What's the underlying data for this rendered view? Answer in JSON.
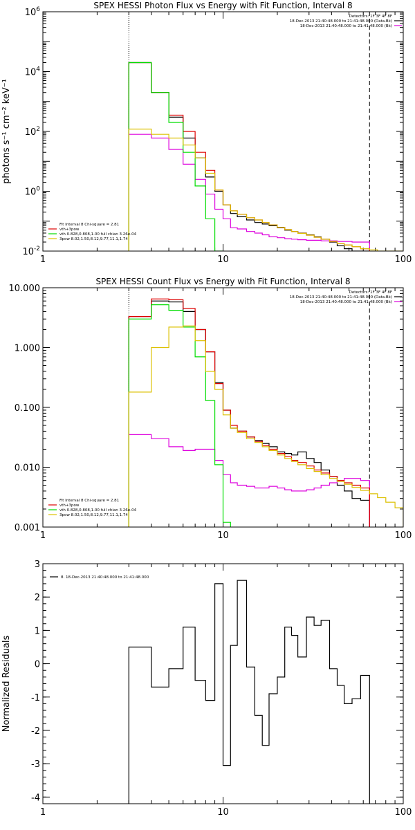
{
  "colors": {
    "black": "#000000",
    "red": "#dd0000",
    "green": "#00dd00",
    "yellow": "#dcc000",
    "magenta": "#dd00dd"
  },
  "chart_data": [
    {
      "type": "line",
      "title": "SPEX HESSI Photon Flux vs Energy with Fit Function, Interval 8",
      "ylabel": "photons s⁻¹ cm⁻² keV⁻¹",
      "xlabel": "",
      "xscale": "log",
      "yscale": "log",
      "xlim": [
        1,
        100
      ],
      "ylim": [
        0.01,
        1000000
      ],
      "x_ticks": [
        "1",
        "10",
        "100"
      ],
      "y_ticks": [
        {
          "value": 0.01,
          "base": "10",
          "exp": "-2"
        },
        {
          "value": 1,
          "base": "10",
          "exp": "0"
        },
        {
          "value": 100,
          "base": "10",
          "exp": "2"
        },
        {
          "value": 10000,
          "base": "10",
          "exp": "4"
        },
        {
          "value": 1000000,
          "base": "10",
          "exp": "6"
        }
      ],
      "vlines": [
        {
          "x": 3.0,
          "style": "dotted"
        },
        {
          "x": 65,
          "style": "dashed"
        }
      ],
      "legend_upper": [
        {
          "text": "Detectors: 1F 3F 4F 8F",
          "color": "",
          "marker": false
        },
        {
          "text": "18-Dec-2013 21:40:48.000 to 21:41:48.000 (Data-Bk)",
          "color": "black",
          "marker": true
        },
        {
          "text": "18-Dec-2013 21:40:48.000 to 21:41:48.000 (Bk)",
          "color": "magenta",
          "marker": true
        }
      ],
      "legend_lower": [
        {
          "text": "Fit Interval 8   Chi-square = 2.81",
          "color": "",
          "marker": false
        },
        {
          "text": "vth+3pow",
          "color": "red",
          "marker": true
        },
        {
          "text": "vth 0.828,0.808,1.00  full chian 3.26e-04",
          "color": "green",
          "marker": true
        },
        {
          "text": "3pow 8.02,1.50,8.12,9.77,11.1,1.74",
          "color": "yellow",
          "marker": true
        }
      ],
      "edges": [
        3.0,
        4.0,
        5.0,
        6.0,
        7.0,
        8.0,
        9.0,
        10.0,
        11.0,
        12.0,
        13.5,
        15.0,
        16.5,
        18.0,
        20.0,
        22.0,
        24.0,
        26.0,
        29.0,
        32.0,
        35.0,
        39.0,
        43.0,
        47.0,
        52.0,
        58.0,
        65.0,
        72.0,
        80.0,
        90.0,
        100.0
      ],
      "series": [
        {
          "name": "Data-Bk",
          "color": "black",
          "values": [
            20000,
            2000,
            300,
            60,
            13,
            3.0,
            1.0,
            0.35,
            0.18,
            0.14,
            0.11,
            0.09,
            0.08,
            0.07,
            0.06,
            0.05,
            0.045,
            0.04,
            0.035,
            0.03,
            0.025,
            0.02,
            0.015,
            0.012,
            0.01,
            0.009,
            null,
            null,
            null,
            null
          ]
        },
        {
          "name": "Bk",
          "color": "magenta",
          "values": [
            80,
            60,
            25,
            8,
            2.5,
            0.8,
            0.25,
            0.12,
            0.06,
            0.055,
            0.045,
            0.04,
            0.035,
            0.03,
            0.028,
            0.026,
            0.025,
            0.024,
            0.023,
            0.023,
            0.022,
            0.022,
            0.021,
            0.021,
            0.02,
            0.02,
            null,
            null,
            null,
            null
          ]
        },
        {
          "name": "vth+3pow",
          "color": "red",
          "values": [
            20000,
            2000,
            350,
            100,
            20,
            5.0,
            1.1,
            0.35,
            0.22,
            0.17,
            0.13,
            0.11,
            0.09,
            0.075,
            0.062,
            0.052,
            0.045,
            0.039,
            0.034,
            0.029,
            0.025,
            0.021,
            0.018,
            0.016,
            0.014,
            0.012,
            null,
            null,
            null,
            null
          ]
        },
        {
          "name": "vth",
          "color": "green",
          "values": [
            20000,
            2000,
            200,
            20,
            1.5,
            0.12,
            0.01,
            null,
            null,
            null,
            null,
            null,
            null,
            null,
            null,
            null,
            null,
            null,
            null,
            null,
            null,
            null,
            null,
            null,
            null,
            null,
            null,
            null,
            null,
            null
          ]
        },
        {
          "name": "3pow",
          "color": "yellow",
          "values": [
            120,
            80,
            60,
            35,
            13,
            4.0,
            1.1,
            0.35,
            0.22,
            0.17,
            0.13,
            0.11,
            0.09,
            0.075,
            0.062,
            0.052,
            0.045,
            0.039,
            0.034,
            0.029,
            0.025,
            0.021,
            0.018,
            0.016,
            0.014,
            0.012,
            0.011,
            0.01,
            0.0095,
            0.009
          ]
        }
      ]
    },
    {
      "type": "line",
      "title": "SPEX HESSI Count Flux vs Energy with Fit Function, Interval 8",
      "ylabel": "",
      "xlabel": "",
      "xscale": "log",
      "yscale": "log",
      "xlim": [
        1,
        100
      ],
      "ylim": [
        0.001,
        10
      ],
      "x_ticks": [
        "1",
        "10",
        "100"
      ],
      "y_ticks": [
        {
          "value": 0.001,
          "label": "0.001"
        },
        {
          "value": 0.01,
          "label": "0.010"
        },
        {
          "value": 0.1,
          "label": "0.100"
        },
        {
          "value": 1,
          "label": "1.000"
        },
        {
          "value": 10,
          "label": "10.000"
        }
      ],
      "vlines": [
        {
          "x": 3.0,
          "style": "dotted"
        },
        {
          "x": 65,
          "style": "dashed"
        }
      ],
      "legend_upper": [
        {
          "text": "Detectors: 1F 3F 4F 8F",
          "color": "",
          "marker": false
        },
        {
          "text": "18-Dec-2013 21:40:48.000 to 21:41:48.000 (Data-Bk)",
          "color": "black",
          "marker": true
        },
        {
          "text": "18-Dec-2013 21:40:48.000 to 21:41:48.000 (Bk)",
          "color": "magenta",
          "marker": true
        }
      ],
      "legend_lower": [
        {
          "text": "Fit Interval 8   Chi-square = 2.81",
          "color": "",
          "marker": false
        },
        {
          "text": "vth+3pow",
          "color": "red",
          "marker": true
        },
        {
          "text": "vth 0.828,0.808,1.00  full chian 3.26e-04",
          "color": "green",
          "marker": true
        },
        {
          "text": "3pow 8.02,1.50,8.12,9.77,11.1,1.74",
          "color": "yellow",
          "marker": true
        }
      ],
      "edges": [
        3.0,
        4.0,
        5.0,
        6.0,
        7.0,
        8.0,
        9.0,
        10.0,
        11.0,
        12.0,
        13.5,
        15.0,
        16.5,
        18.0,
        20.0,
        22.0,
        24.0,
        26.0,
        29.0,
        32.0,
        35.0,
        39.0,
        43.0,
        47.0,
        52.0,
        58.0,
        65.0,
        72.0,
        80.0,
        90.0,
        100.0
      ],
      "series": [
        {
          "name": "Data-Bk",
          "color": "black",
          "values": [
            3.3,
            6.0,
            5.8,
            4.0,
            2.0,
            0.85,
            0.26,
            0.09,
            0.045,
            0.04,
            0.032,
            0.028,
            0.025,
            0.022,
            0.018,
            0.017,
            0.016,
            0.018,
            0.014,
            0.012,
            0.009,
            0.007,
            0.005,
            0.004,
            0.003,
            0.0028,
            null,
            null,
            null,
            null
          ]
        },
        {
          "name": "Bk",
          "color": "magenta",
          "values": [
            0.035,
            0.03,
            0.022,
            0.019,
            0.02,
            0.02,
            0.013,
            0.0075,
            0.0055,
            0.005,
            0.0048,
            0.0045,
            0.0045,
            0.0048,
            0.0045,
            0.0042,
            0.004,
            0.004,
            0.0042,
            0.0045,
            0.005,
            0.0055,
            0.006,
            0.0065,
            0.0065,
            0.006,
            null,
            null,
            null,
            null
          ]
        },
        {
          "name": "vth+3pow",
          "color": "red",
          "values": [
            3.3,
            6.5,
            6.3,
            4.5,
            2.0,
            0.85,
            0.25,
            0.09,
            0.05,
            0.04,
            0.032,
            0.027,
            0.023,
            0.02,
            0.017,
            0.015,
            0.013,
            0.012,
            0.0105,
            0.009,
            0.008,
            0.007,
            0.006,
            0.0055,
            0.005,
            0.0045,
            null,
            null,
            null,
            null
          ]
        },
        {
          "name": "vth",
          "color": "green",
          "values": [
            3.0,
            5.2,
            4.2,
            2.2,
            0.7,
            0.13,
            0.011,
            0.0012,
            null,
            null,
            null,
            null,
            null,
            null,
            null,
            null,
            null,
            null,
            null,
            null,
            null,
            null,
            null,
            null,
            null,
            null,
            null,
            null,
            null,
            null
          ]
        },
        {
          "name": "3pow",
          "color": "yellow",
          "values": [
            0.18,
            1.0,
            2.2,
            2.3,
            1.3,
            0.4,
            0.2,
            0.075,
            0.045,
            0.038,
            0.03,
            0.026,
            0.022,
            0.019,
            0.016,
            0.014,
            0.0125,
            0.011,
            0.0095,
            0.0085,
            0.0075,
            0.0065,
            0.0058,
            0.0052,
            0.0046,
            0.0041,
            0.0036,
            0.0031,
            0.0026,
            0.0021
          ]
        }
      ]
    },
    {
      "type": "line",
      "title": "",
      "ylabel": "Normalized Residuals",
      "xlabel": "",
      "xscale": "log",
      "yscale": "linear",
      "xlim": [
        1,
        100
      ],
      "ylim": [
        -4.2,
        3
      ],
      "x_ticks": [
        "1",
        "10",
        "100"
      ],
      "y_ticks": [
        {
          "value": 3,
          "label": "3"
        },
        {
          "value": 2,
          "label": "2"
        },
        {
          "value": 1,
          "label": "1"
        },
        {
          "value": 0,
          "label": "0"
        },
        {
          "value": -1,
          "label": "-1"
        },
        {
          "value": -2,
          "label": "-2"
        },
        {
          "value": -3,
          "label": "-3"
        },
        {
          "value": -4,
          "label": "-4"
        }
      ],
      "legend_upper": [
        {
          "text": "8. 18-Dec-2013 21:40:48.000 to 21:41:48.000",
          "color": "black",
          "marker": true
        }
      ],
      "edges": [
        3.0,
        4.0,
        5.0,
        6.0,
        7.0,
        8.0,
        9.0,
        10.0,
        11.0,
        12.0,
        13.5,
        15.0,
        16.5,
        18.0,
        20.0,
        22.0,
        24.0,
        26.0,
        29.0,
        32.0,
        35.0,
        39.0,
        43.0,
        47.0,
        52.0,
        58.0,
        65.0
      ],
      "series": [
        {
          "name": "",
          "color": "black",
          "values": [
            0.5,
            -0.7,
            -0.15,
            1.1,
            -0.5,
            -1.1,
            2.4,
            -3.05,
            0.55,
            2.5,
            -0.1,
            -1.55,
            -2.45,
            -0.9,
            -0.4,
            1.1,
            0.85,
            0.2,
            1.4,
            1.15,
            1.3,
            -0.15,
            -0.65,
            -1.2,
            -1.05,
            -0.35
          ]
        }
      ]
    }
  ]
}
